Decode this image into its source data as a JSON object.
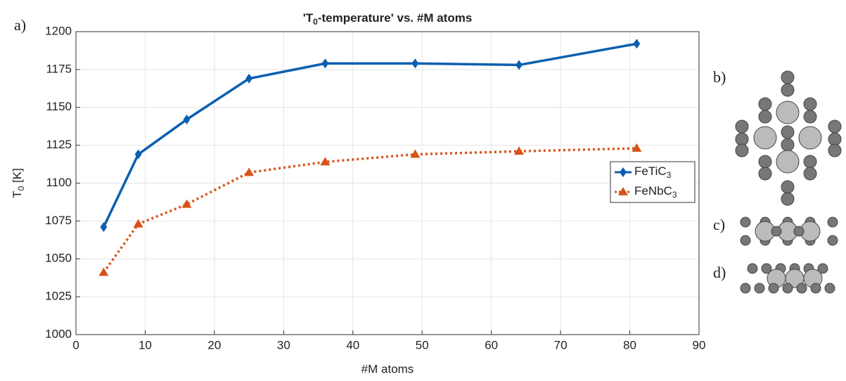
{
  "chart_data": {
    "type": "line",
    "title": [
      "'T",
      "0",
      "-temperature' vs. #M atoms"
    ],
    "xlabel": "#M atoms",
    "ylabel": [
      "T",
      "0",
      " [K]"
    ],
    "panel_labels": [
      "a)",
      "b)",
      "c)",
      "d)"
    ],
    "x": [
      4,
      9,
      16,
      25,
      36,
      49,
      64,
      81
    ],
    "series": [
      {
        "name": [
          "FeTiC",
          "3"
        ],
        "color": "#0b5fb0",
        "marker": "diamond",
        "dash": "solid",
        "values": [
          1071,
          1119,
          1142,
          1169,
          1179,
          1179,
          1178,
          1192
        ]
      },
      {
        "name": [
          "FeNbC",
          "3"
        ],
        "color": "#d95319",
        "marker": "triangle",
        "dash": "dotted",
        "values": [
          1041,
          1073,
          1086,
          1107,
          1114,
          1119,
          1121,
          1123
        ]
      }
    ],
    "xlim": [
      0,
      90
    ],
    "xticks": [
      0,
      10,
      20,
      30,
      40,
      50,
      60,
      70,
      80,
      90
    ],
    "ylim": [
      1000,
      1200
    ],
    "yticks": [
      1000,
      1025,
      1050,
      1075,
      1100,
      1125,
      1150,
      1175,
      1200
    ],
    "grid": true,
    "legend": "right"
  }
}
